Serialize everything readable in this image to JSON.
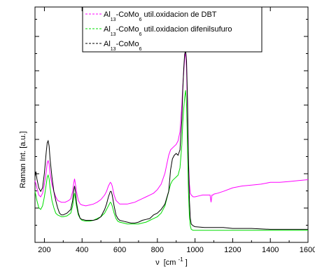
{
  "chart_data": {
    "type": "line",
    "xlabel_symbol": "ν",
    "xlabel_unit": "[cm",
    "xlabel_exp": "-1",
    "xlabel_close": "]",
    "ylabel": "Raman Int. [a.u.]",
    "xlim": [
      150,
      1600
    ],
    "ylim": [
      0,
      1
    ],
    "xticks": [
      200,
      400,
      600,
      800,
      1000,
      1200,
      1400,
      1600
    ],
    "ytick_labels": false,
    "grid": false,
    "legend_position": "top-center",
    "series": [
      {
        "legend_main": "Al",
        "legend_sub1": "13",
        "legend_mid": "-CoMo",
        "legend_sub2": "6",
        "legend_rest": " util.oxidacion de DBT",
        "color": "#ff00ff",
        "dash": "dashed",
        "x": [
          150,
          160,
          170,
          180,
          190,
          200,
          210,
          215,
          220,
          225,
          230,
          240,
          250,
          260,
          270,
          280,
          290,
          300,
          310,
          320,
          330,
          340,
          350,
          355,
          360,
          365,
          370,
          380,
          390,
          400,
          420,
          440,
          460,
          480,
          500,
          520,
          530,
          540,
          550,
          555,
          560,
          570,
          580,
          590,
          600,
          620,
          640,
          660,
          680,
          700,
          720,
          740,
          760,
          780,
          800,
          820,
          840,
          860,
          870,
          880,
          890,
          900,
          910,
          920,
          930,
          935,
          940,
          945,
          950,
          955,
          960,
          965,
          970,
          975,
          980,
          990,
          1000,
          1020,
          1040,
          1060,
          1080,
          1085,
          1090,
          1095,
          1100,
          1120,
          1150,
          1200,
          1250,
          1300,
          1350,
          1400,
          1450,
          1500,
          1550,
          1600
        ],
        "y": [
          0.28,
          0.24,
          0.2,
          0.19,
          0.21,
          0.26,
          0.33,
          0.38,
          0.39,
          0.37,
          0.32,
          0.26,
          0.22,
          0.19,
          0.17,
          0.165,
          0.16,
          0.16,
          0.16,
          0.165,
          0.17,
          0.18,
          0.22,
          0.26,
          0.29,
          0.26,
          0.22,
          0.17,
          0.15,
          0.145,
          0.14,
          0.145,
          0.15,
          0.16,
          0.175,
          0.2,
          0.22,
          0.25,
          0.27,
          0.265,
          0.25,
          0.2,
          0.17,
          0.16,
          0.15,
          0.15,
          0.15,
          0.155,
          0.16,
          0.17,
          0.18,
          0.19,
          0.2,
          0.21,
          0.23,
          0.26,
          0.32,
          0.42,
          0.45,
          0.46,
          0.47,
          0.48,
          0.5,
          0.55,
          0.7,
          0.8,
          0.88,
          0.96,
          0.99,
          0.9,
          0.65,
          0.4,
          0.26,
          0.21,
          0.2,
          0.19,
          0.19,
          0.195,
          0.2,
          0.2,
          0.2,
          0.16,
          0.2,
          0.2,
          0.205,
          0.21,
          0.22,
          0.24,
          0.25,
          0.255,
          0.26,
          0.27,
          0.27,
          0.275,
          0.28,
          0.285
        ]
      },
      {
        "legend_main": "Al",
        "legend_sub1": "13",
        "legend_mid": "-CoMo",
        "legend_sub2": "6",
        "legend_rest": " util.oxidacion difenilsufuro",
        "color": "#00dd00",
        "dash": "dashed",
        "x": [
          150,
          160,
          170,
          180,
          190,
          200,
          210,
          215,
          220,
          225,
          230,
          240,
          250,
          260,
          270,
          280,
          290,
          300,
          320,
          340,
          350,
          355,
          360,
          365,
          370,
          380,
          390,
          400,
          420,
          440,
          460,
          480,
          500,
          520,
          530,
          540,
          550,
          555,
          560,
          570,
          580,
          590,
          600,
          620,
          640,
          660,
          680,
          700,
          720,
          740,
          760,
          780,
          800,
          820,
          840,
          860,
          870,
          880,
          890,
          900,
          910,
          920,
          930,
          935,
          940,
          945,
          950,
          955,
          960,
          965,
          970,
          975,
          980,
          990,
          1000,
          1050,
          1100,
          1200,
          1300,
          1400,
          1500,
          1600
        ],
        "y": [
          0.22,
          0.17,
          0.13,
          0.12,
          0.14,
          0.19,
          0.26,
          0.3,
          0.31,
          0.29,
          0.24,
          0.17,
          0.13,
          0.1,
          0.09,
          0.085,
          0.08,
          0.08,
          0.085,
          0.1,
          0.14,
          0.18,
          0.21,
          0.18,
          0.14,
          0.09,
          0.07,
          0.06,
          0.055,
          0.055,
          0.06,
          0.07,
          0.08,
          0.1,
          0.12,
          0.14,
          0.16,
          0.155,
          0.14,
          0.1,
          0.07,
          0.055,
          0.05,
          0.045,
          0.04,
          0.04,
          0.04,
          0.04,
          0.045,
          0.05,
          0.06,
          0.07,
          0.08,
          0.1,
          0.14,
          0.22,
          0.26,
          0.28,
          0.29,
          0.3,
          0.31,
          0.35,
          0.48,
          0.6,
          0.68,
          0.74,
          0.78,
          0.7,
          0.45,
          0.22,
          0.08,
          0.03,
          0.01,
          0.005,
          0.005,
          0.005,
          0.005,
          0.005,
          0.005,
          0.005,
          0.005,
          0.005
        ]
      },
      {
        "legend_main": "Al",
        "legend_sub1": "13",
        "legend_mid": "-CoMo",
        "legend_sub2": "6",
        "legend_rest": "",
        "color": "#000000",
        "dash": "dashed",
        "x": [
          150,
          155,
          160,
          170,
          180,
          190,
          200,
          210,
          215,
          220,
          225,
          230,
          240,
          250,
          260,
          270,
          280,
          290,
          300,
          320,
          340,
          350,
          355,
          360,
          365,
          370,
          380,
          390,
          400,
          420,
          440,
          460,
          480,
          500,
          520,
          530,
          540,
          550,
          555,
          560,
          570,
          580,
          590,
          600,
          620,
          640,
          660,
          680,
          700,
          720,
          740,
          760,
          780,
          800,
          820,
          840,
          860,
          870,
          880,
          890,
          900,
          910,
          920,
          930,
          935,
          940,
          945,
          950,
          955,
          960,
          965,
          970,
          975,
          980,
          990,
          1000,
          1050,
          1100,
          1150,
          1200,
          1300,
          1400,
          1500,
          1600
        ],
        "y": [
          0.3,
          0.33,
          0.29,
          0.24,
          0.22,
          0.24,
          0.32,
          0.44,
          0.49,
          0.5,
          0.47,
          0.4,
          0.3,
          0.22,
          0.17,
          0.13,
          0.1,
          0.09,
          0.09,
          0.1,
          0.12,
          0.17,
          0.22,
          0.25,
          0.22,
          0.16,
          0.1,
          0.07,
          0.065,
          0.06,
          0.06,
          0.06,
          0.065,
          0.08,
          0.12,
          0.15,
          0.19,
          0.22,
          0.22,
          0.2,
          0.14,
          0.09,
          0.07,
          0.06,
          0.055,
          0.05,
          0.045,
          0.045,
          0.05,
          0.06,
          0.065,
          0.07,
          0.09,
          0.1,
          0.12,
          0.15,
          0.22,
          0.34,
          0.4,
          0.42,
          0.43,
          0.42,
          0.45,
          0.62,
          0.78,
          0.9,
          0.98,
          1.0,
          0.94,
          0.72,
          0.4,
          0.17,
          0.07,
          0.04,
          0.03,
          0.025,
          0.02,
          0.02,
          0.02,
          0.015,
          0.015,
          0.01,
          0.01,
          0.01
        ]
      }
    ]
  }
}
